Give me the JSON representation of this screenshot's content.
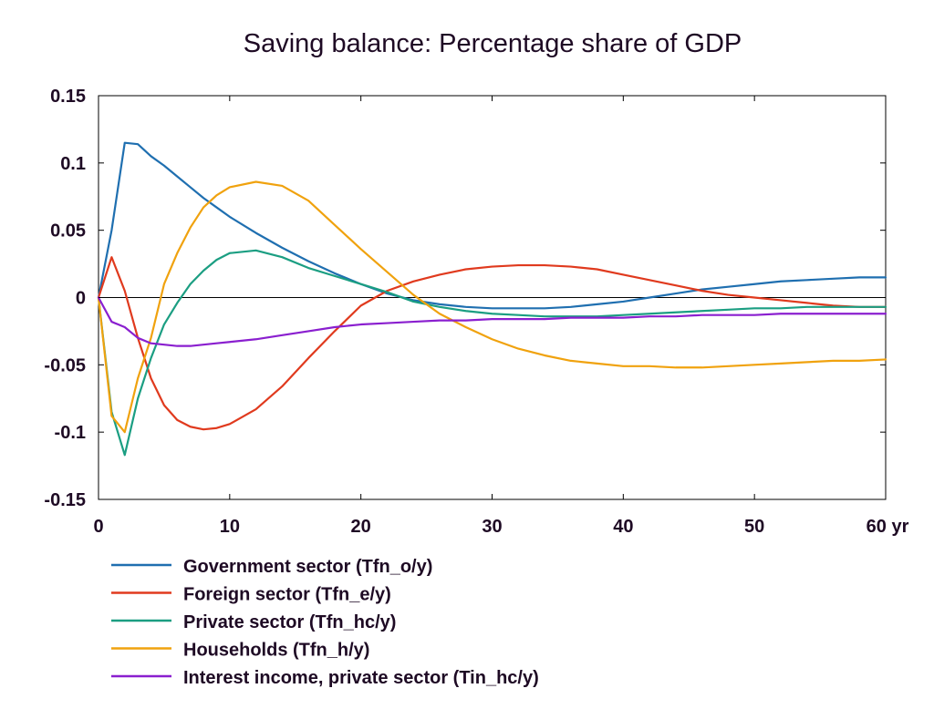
{
  "chart_data": {
    "type": "line",
    "title": "Saving balance: Percentage share of GDP",
    "xlabel": "",
    "ylabel": "",
    "x_unit_label": "yr",
    "xlim": [
      0,
      60
    ],
    "ylim": [
      -0.15,
      0.15
    ],
    "x_ticks": [
      0,
      10,
      20,
      30,
      40,
      50,
      60
    ],
    "x_tick_labels": [
      "0",
      "10",
      "20",
      "30",
      "40",
      "50",
      "60 yr"
    ],
    "y_ticks": [
      0.15,
      0.1,
      0.05,
      0,
      -0.05,
      -0.1,
      -0.15
    ],
    "y_tick_labels": [
      "0.15",
      "0.1",
      "0.05",
      "0",
      "-0.05",
      "-0.1",
      "-0.15"
    ],
    "grid": false,
    "zero_line": true,
    "legend_position": "bottom-left",
    "x": [
      0,
      1,
      2,
      3,
      4,
      5,
      6,
      7,
      8,
      9,
      10,
      12,
      14,
      16,
      18,
      20,
      22,
      24,
      26,
      28,
      30,
      32,
      34,
      36,
      38,
      40,
      42,
      44,
      46,
      48,
      50,
      52,
      54,
      56,
      58,
      60
    ],
    "series": [
      {
        "name": "Government sector (Tfn_o/y)",
        "color": "#1f6fb0",
        "values": [
          0,
          0.05,
          0.115,
          0.114,
          0.105,
          0.098,
          0.09,
          0.082,
          0.074,
          0.067,
          0.06,
          0.048,
          0.037,
          0.027,
          0.018,
          0.01,
          0.003,
          -0.002,
          -0.005,
          -0.007,
          -0.008,
          -0.008,
          -0.008,
          -0.007,
          -0.005,
          -0.003,
          0.0,
          0.003,
          0.006,
          0.008,
          0.01,
          0.012,
          0.013,
          0.014,
          0.015,
          0.015
        ]
      },
      {
        "name": "Foreign sector (Tfn_e/y)",
        "color": "#e03a1e",
        "values": [
          0,
          0.03,
          0.005,
          -0.03,
          -0.06,
          -0.08,
          -0.091,
          -0.096,
          -0.098,
          -0.097,
          -0.094,
          -0.083,
          -0.066,
          -0.045,
          -0.025,
          -0.006,
          0.005,
          0.012,
          0.017,
          0.021,
          0.023,
          0.024,
          0.024,
          0.023,
          0.021,
          0.017,
          0.013,
          0.009,
          0.005,
          0.002,
          0.0,
          -0.002,
          -0.004,
          -0.006,
          -0.007,
          -0.007
        ]
      },
      {
        "name": "Private sector (Tfn_hc/y)",
        "color": "#1b9e82",
        "values": [
          0,
          -0.085,
          -0.117,
          -0.075,
          -0.045,
          -0.02,
          -0.004,
          0.01,
          0.02,
          0.028,
          0.033,
          0.035,
          0.03,
          0.022,
          0.016,
          0.01,
          0.004,
          -0.003,
          -0.007,
          -0.01,
          -0.012,
          -0.013,
          -0.014,
          -0.014,
          -0.014,
          -0.013,
          -0.012,
          -0.011,
          -0.01,
          -0.009,
          -0.008,
          -0.008,
          -0.007,
          -0.007,
          -0.007,
          -0.007
        ]
      },
      {
        "name": "Households (Tfn_h/y)",
        "color": "#f0a20e",
        "values": [
          0,
          -0.088,
          -0.1,
          -0.06,
          -0.03,
          0.01,
          0.033,
          0.052,
          0.067,
          0.076,
          0.082,
          0.086,
          0.083,
          0.072,
          0.054,
          0.036,
          0.019,
          0.002,
          -0.012,
          -0.022,
          -0.031,
          -0.038,
          -0.043,
          -0.047,
          -0.049,
          -0.051,
          -0.051,
          -0.052,
          -0.052,
          -0.051,
          -0.05,
          -0.049,
          -0.048,
          -0.047,
          -0.047,
          -0.046
        ]
      },
      {
        "name": "Interest income, private sector (Tin_hc/y)",
        "color": "#8a1fcf",
        "values": [
          0,
          -0.018,
          -0.022,
          -0.03,
          -0.034,
          -0.035,
          -0.036,
          -0.036,
          -0.035,
          -0.034,
          -0.033,
          -0.031,
          -0.028,
          -0.025,
          -0.022,
          -0.02,
          -0.019,
          -0.018,
          -0.017,
          -0.017,
          -0.016,
          -0.016,
          -0.016,
          -0.015,
          -0.015,
          -0.015,
          -0.014,
          -0.014,
          -0.013,
          -0.013,
          -0.013,
          -0.012,
          -0.012,
          -0.012,
          -0.012,
          -0.012
        ]
      }
    ]
  }
}
